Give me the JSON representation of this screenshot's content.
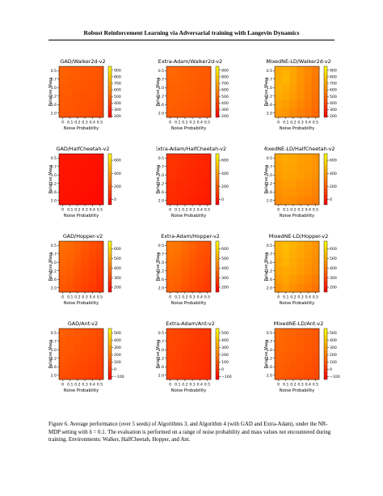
{
  "header": {
    "title": "Robust Reinforcement Learning via Adversarial training with Langevin Dynamics"
  },
  "figure": {
    "caption": "Figure 6. Average performance (over 5 seeds) of Algorithms 3, and Algorithm 4 (with GAD and Extra-Adam), under the NR-MDP setting with δ = 0.1. The evaluation is performed on a range of noise probability and mass values not encountered during training. Environments: Walker, HalfCheetah, Hopper, and Ant."
  },
  "colormap": {
    "name": "autumn",
    "low": "#ff0000",
    "high": "#ffff00"
  },
  "chart_data": [
    {
      "type": "heatmap",
      "title": "GAD/Walker2d-v2",
      "xlabel": "Noise Probability",
      "ylabel": "Relative Mass",
      "x": [
        "0",
        "0.1",
        "0.2",
        "0.3",
        "0.4",
        "0.5"
      ],
      "y": [
        "0.5",
        "0.7",
        "1.0",
        "1.2",
        "1.6",
        "2.0"
      ],
      "colorbar_ticks": [
        "900",
        "800",
        "700",
        "600",
        "500",
        "400",
        "300",
        "200"
      ],
      "vmin": 180,
      "vmax": 960,
      "values": [
        [
          480,
          470,
          455,
          450,
          445,
          440
        ],
        [
          470,
          460,
          455,
          445,
          440,
          435
        ],
        [
          460,
          455,
          450,
          440,
          435,
          430
        ],
        [
          455,
          450,
          440,
          430,
          430,
          420
        ],
        [
          450,
          445,
          435,
          425,
          420,
          410
        ],
        [
          445,
          440,
          430,
          420,
          410,
          400
        ]
      ]
    },
    {
      "type": "heatmap",
      "title": "Extra-Adam/Walker2d-v2",
      "xlabel": "Noise Probability",
      "ylabel": "Relative Mass",
      "x": [
        "0",
        "0.1",
        "0.2",
        "0.3",
        "0.4",
        "0.5"
      ],
      "y": [
        "0.5",
        "0.7",
        "1.0",
        "1.2",
        "1.6",
        "2.0"
      ],
      "colorbar_ticks": [
        "900",
        "800",
        "700",
        "600",
        "500",
        "400",
        "300",
        "200"
      ],
      "vmin": 180,
      "vmax": 960,
      "values": [
        [
          500,
          490,
          480,
          470,
          460,
          455
        ],
        [
          490,
          485,
          475,
          465,
          455,
          450
        ],
        [
          480,
          475,
          470,
          460,
          450,
          445
        ],
        [
          475,
          470,
          460,
          455,
          445,
          440
        ],
        [
          470,
          460,
          455,
          445,
          440,
          430
        ],
        [
          460,
          455,
          445,
          440,
          430,
          420
        ]
      ]
    },
    {
      "type": "heatmap",
      "title": "MixedNE-LD/Walker2d-v2",
      "xlabel": "Noise Probability",
      "ylabel": "Relative Mass",
      "x": [
        "0",
        "0.1",
        "0.2",
        "0.3",
        "0.4",
        "0.5"
      ],
      "y": [
        "0.5",
        "0.7",
        "1.0",
        "1.2",
        "1.6",
        "2.0"
      ],
      "colorbar_ticks": [
        "900",
        "800",
        "700",
        "600",
        "500",
        "400",
        "300",
        "200"
      ],
      "vmin": 180,
      "vmax": 960,
      "values": [
        [
          700,
          720,
          690,
          640,
          600,
          560
        ],
        [
          710,
          730,
          680,
          630,
          590,
          550
        ],
        [
          720,
          700,
          670,
          620,
          580,
          540
        ],
        [
          700,
          690,
          650,
          610,
          570,
          530
        ],
        [
          680,
          660,
          630,
          590,
          560,
          520
        ],
        [
          650,
          640,
          600,
          570,
          540,
          500
        ]
      ]
    },
    {
      "type": "heatmap",
      "title": "GAD/HalfCheetah-v2",
      "xlabel": "Noise Probability",
      "ylabel": "Relative Mass",
      "x": [
        "0",
        "0.1",
        "0.2",
        "0.3",
        "0.4",
        "0.5"
      ],
      "y": [
        "0.5",
        "0.7",
        "1.0",
        "1.2",
        "1.6",
        "2.0"
      ],
      "colorbar_ticks": [
        "600",
        "400",
        "200",
        "0"
      ],
      "vmin": -80,
      "vmax": 700,
      "values": [
        [
          -10,
          -15,
          -20,
          -20,
          -25,
          -30
        ],
        [
          -15,
          -20,
          -20,
          -25,
          -30,
          -30
        ],
        [
          -20,
          -20,
          -25,
          -30,
          -30,
          -35
        ],
        [
          -20,
          -25,
          -25,
          -30,
          -35,
          -40
        ],
        [
          -25,
          -25,
          -30,
          -35,
          -40,
          -45
        ],
        [
          -30,
          -30,
          -35,
          -40,
          -45,
          -50
        ]
      ]
    },
    {
      "type": "heatmap",
      "title": "Extra-Adam/HalfCheetah-v2",
      "xlabel": "Noise Probability",
      "ylabel": "Relative Mass",
      "x": [
        "0",
        "0.1",
        "0.2",
        "0.3",
        "0.4",
        "0.5"
      ],
      "y": [
        "0.5",
        "0.7",
        "1.0",
        "1.2",
        "1.6",
        "2.0"
      ],
      "colorbar_ticks": [
        "600",
        "400",
        "200",
        "0"
      ],
      "vmin": -80,
      "vmax": 700,
      "values": [
        [
          80,
          70,
          60,
          50,
          40,
          30
        ],
        [
          75,
          65,
          55,
          45,
          35,
          30
        ],
        [
          70,
          60,
          50,
          40,
          30,
          20
        ],
        [
          60,
          50,
          45,
          35,
          25,
          15
        ],
        [
          55,
          45,
          35,
          30,
          20,
          10
        ],
        [
          50,
          40,
          30,
          20,
          10,
          0
        ]
      ]
    },
    {
      "type": "heatmap",
      "title": "MixedNE-LD/HalfCheetah-v2",
      "xlabel": "Noise Probability",
      "ylabel": "Relative Mass",
      "x": [
        "0",
        "0.1",
        "0.2",
        "0.3",
        "0.4",
        "0.5"
      ],
      "y": [
        "0.5",
        "0.7",
        "1.0",
        "1.2",
        "1.6",
        "2.0"
      ],
      "colorbar_ticks": [
        "600",
        "400",
        "200",
        "0"
      ],
      "vmin": -80,
      "vmax": 700,
      "values": [
        [
          420,
          440,
          430,
          410,
          400,
          380
        ],
        [
          410,
          430,
          420,
          400,
          390,
          370
        ],
        [
          400,
          420,
          410,
          390,
          380,
          360
        ],
        [
          380,
          400,
          390,
          370,
          360,
          340
        ],
        [
          360,
          380,
          370,
          350,
          340,
          320
        ],
        [
          340,
          360,
          350,
          330,
          320,
          300
        ]
      ]
    },
    {
      "type": "heatmap",
      "title": "GAD/Hopper-v2",
      "xlabel": "Noise Probability",
      "ylabel": "Relative Mass",
      "x": [
        "0",
        "0.1",
        "0.2",
        "0.3",
        "0.4",
        "0.5"
      ],
      "y": [
        "0.5",
        "0.7",
        "1.0",
        "1.2",
        "1.6",
        "2.0"
      ],
      "colorbar_ticks": [
        "600",
        "500",
        "400",
        "300",
        "200"
      ],
      "vmin": 150,
      "vmax": 680,
      "values": [
        [
          380,
          370,
          350,
          330,
          310,
          300
        ],
        [
          370,
          360,
          340,
          320,
          300,
          290
        ],
        [
          360,
          350,
          330,
          310,
          295,
          280
        ],
        [
          350,
          340,
          320,
          300,
          285,
          270
        ],
        [
          340,
          330,
          310,
          295,
          280,
          260
        ],
        [
          330,
          320,
          300,
          285,
          270,
          250
        ]
      ]
    },
    {
      "type": "heatmap",
      "title": "Extra-Adam/Hopper-v2",
      "xlabel": "Noise Probability",
      "ylabel": "Relative Mass",
      "x": [
        "0",
        "0.1",
        "0.2",
        "0.3",
        "0.4",
        "0.5"
      ],
      "y": [
        "0.5",
        "0.7",
        "1.0",
        "1.2",
        "1.6",
        "2.0"
      ],
      "colorbar_ticks": [
        "600",
        "500",
        "400",
        "300",
        "200"
      ],
      "vmin": 150,
      "vmax": 680,
      "values": [
        [
          400,
          390,
          370,
          350,
          330,
          320
        ],
        [
          390,
          380,
          360,
          340,
          320,
          310
        ],
        [
          380,
          370,
          350,
          330,
          315,
          300
        ],
        [
          370,
          360,
          340,
          320,
          305,
          290
        ],
        [
          360,
          350,
          330,
          310,
          295,
          280
        ],
        [
          350,
          340,
          320,
          300,
          285,
          270
        ]
      ]
    },
    {
      "type": "heatmap",
      "title": "MixedNE-LD/Hopper-v2",
      "xlabel": "Noise Probability",
      "ylabel": "Relative Mass",
      "x": [
        "0",
        "0.1",
        "0.2",
        "0.3",
        "0.4",
        "0.5"
      ],
      "y": [
        "0.5",
        "0.7",
        "1.0",
        "1.2",
        "1.6",
        "2.0"
      ],
      "colorbar_ticks": [
        "600",
        "500",
        "400",
        "300",
        "200"
      ],
      "vmin": 150,
      "vmax": 680,
      "values": [
        [
          520,
          540,
          520,
          500,
          480,
          460
        ],
        [
          510,
          530,
          510,
          490,
          470,
          450
        ],
        [
          500,
          520,
          500,
          480,
          460,
          440
        ],
        [
          490,
          500,
          490,
          470,
          450,
          430
        ],
        [
          470,
          490,
          470,
          450,
          430,
          410
        ],
        [
          450,
          470,
          450,
          430,
          410,
          390
        ]
      ]
    },
    {
      "type": "heatmap",
      "title": "GAD/Ant-v2",
      "xlabel": "Noise Probability",
      "ylabel": "Relative Mass",
      "x": [
        "0",
        "0.1",
        "0.2",
        "0.3",
        "0.4",
        "0.5"
      ],
      "y": [
        "0.5",
        "0.7",
        "1.0",
        "1.2",
        "1.6",
        "2.0"
      ],
      "colorbar_ticks": [
        "500",
        "400",
        "300",
        "200",
        "100",
        "0",
        "−100"
      ],
      "vmin": -140,
      "vmax": 560,
      "values": [
        [
          120,
          110,
          100,
          90,
          80,
          70
        ],
        [
          110,
          100,
          90,
          80,
          70,
          60
        ],
        [
          100,
          95,
          85,
          75,
          65,
          55
        ],
        [
          95,
          85,
          75,
          65,
          55,
          45
        ],
        [
          85,
          75,
          65,
          55,
          45,
          35
        ],
        [
          75,
          65,
          55,
          45,
          35,
          25
        ]
      ]
    },
    {
      "type": "heatmap",
      "title": "Extra-Adam/Ant-v2",
      "xlabel": "Noise Probability",
      "ylabel": "Relative Mass",
      "x": [
        "0",
        "0.1",
        "0.2",
        "0.3",
        "0.4",
        "0.5"
      ],
      "y": [
        "0.5",
        "0.7",
        "1.0",
        "1.2",
        "1.6",
        "2.0"
      ],
      "colorbar_ticks": [
        "500",
        "400",
        "300",
        "200",
        "100",
        "0",
        "−100"
      ],
      "vmin": -140,
      "vmax": 560,
      "values": [
        [
          60,
          50,
          40,
          30,
          20,
          10
        ],
        [
          55,
          45,
          35,
          25,
          15,
          5
        ],
        [
          50,
          40,
          30,
          20,
          10,
          0
        ],
        [
          45,
          35,
          25,
          15,
          5,
          -5
        ],
        [
          40,
          30,
          20,
          10,
          0,
          -10
        ],
        [
          35,
          25,
          15,
          5,
          -5,
          -15
        ]
      ]
    },
    {
      "type": "heatmap",
      "title": "MixedNE-LD/Ant-v2",
      "xlabel": "Noise Probability",
      "ylabel": "Relative Mass",
      "x": [
        "0",
        "0.1",
        "0.2",
        "0.3",
        "0.4",
        "0.5"
      ],
      "y": [
        "0.5",
        "0.7",
        "1.0",
        "1.2",
        "1.6",
        "2.0"
      ],
      "colorbar_ticks": [
        "500",
        "400",
        "300",
        "200",
        "100",
        "0",
        "−100"
      ],
      "vmin": -140,
      "vmax": 560,
      "values": [
        [
          150,
          140,
          130,
          120,
          110,
          100
        ],
        [
          145,
          135,
          125,
          115,
          105,
          95
        ],
        [
          140,
          130,
          120,
          110,
          100,
          90
        ],
        [
          130,
          120,
          110,
          100,
          90,
          80
        ],
        [
          120,
          110,
          100,
          90,
          80,
          70
        ],
        [
          110,
          100,
          90,
          80,
          70,
          60
        ]
      ]
    }
  ]
}
